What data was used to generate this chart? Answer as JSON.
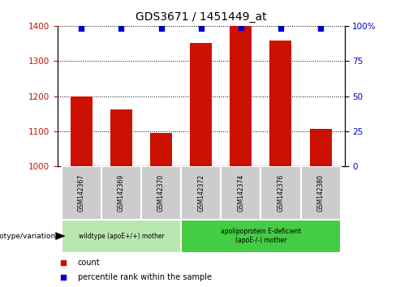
{
  "title": "GDS3671 / 1451449_at",
  "samples": [
    "GSM142367",
    "GSM142369",
    "GSM142370",
    "GSM142372",
    "GSM142374",
    "GSM142376",
    "GSM142380"
  ],
  "counts": [
    1200,
    1163,
    1095,
    1352,
    1400,
    1358,
    1107
  ],
  "percentile_ranks": [
    98,
    98,
    98,
    98,
    99,
    98,
    98
  ],
  "ylim_left": [
    1000,
    1400
  ],
  "ylim_right": [
    0,
    100
  ],
  "yticks_left": [
    1000,
    1100,
    1200,
    1300,
    1400
  ],
  "yticks_right": [
    0,
    25,
    50,
    75,
    100
  ],
  "bar_color": "#cc1100",
  "dot_color": "#0000cc",
  "groups": [
    {
      "label": "wildtype (apoE+/+) mother",
      "samples_idx": [
        0,
        1,
        2
      ],
      "color": "#b8e8b0"
    },
    {
      "label": "apolipoprotein E-deficient\n(apoE-/-) mother",
      "samples_idx": [
        3,
        4,
        5,
        6
      ],
      "color": "#44cc44"
    }
  ],
  "xlabel_group": "genotype/variation",
  "legend_count_label": "count",
  "legend_pct_label": "percentile rank within the sample",
  "grid_color": "black",
  "bar_width": 0.55,
  "tick_label_color_left": "#cc1100",
  "tick_label_color_right": "#0000cc",
  "background_color": "#ffffff",
  "sample_box_color": "#cccccc"
}
